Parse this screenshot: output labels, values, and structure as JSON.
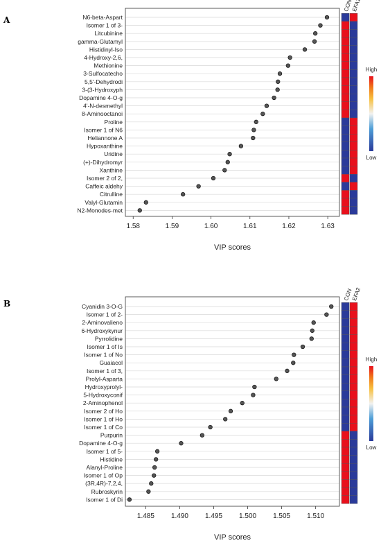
{
  "colors": {
    "high": "#e8101c",
    "low": "#2a3a9a",
    "point_fill": "#555555",
    "grid": "#d9d9d9"
  },
  "chart_data": [
    {
      "panel": "A",
      "type": "scatter",
      "xlabel": "VIP scores",
      "xlim": [
        1.578,
        1.633
      ],
      "xticks": [
        1.58,
        1.59,
        1.6,
        1.61,
        1.62,
        1.63
      ],
      "xtick_labels": [
        "1.58",
        "1.59",
        "1.60",
        "1.61",
        "1.62",
        "1.63"
      ],
      "categories": [
        "N6-beta-Aspart",
        "Isomer 1 of 3-",
        "Litcubinine",
        "gamma-Glutamyl",
        "Histidinyl-Iso",
        "4-Hydroxy-2,6,",
        "Methionine",
        "3-Sulfocatecho",
        "5,5'-Dehydrodi",
        "3-(3-Hydroxyph",
        "Dopamine 4-O-g",
        "4'-N-desmethyl",
        "8-Aminooctanoi",
        "Proline",
        "Isomer 1 of N6",
        "Heliannone A",
        "Hypoxanthine",
        "Uridine",
        "(+)-Dihydromyr",
        "Xanthine",
        "Isomer 2 of 2,",
        "Caffeic aldehy",
        "Citrulline",
        "Valyl-Glutamin",
        "N2-Monodes-met"
      ],
      "values": [
        1.6298,
        1.6281,
        1.6268,
        1.6266,
        1.6241,
        1.6203,
        1.6198,
        1.6177,
        1.6172,
        1.6171,
        1.6162,
        1.6143,
        1.6133,
        1.6116,
        1.611,
        1.6108,
        1.6077,
        1.6048,
        1.6043,
        1.6035,
        1.6006,
        1.5968,
        1.5928,
        1.5833,
        1.5817
      ],
      "heatmap_columns": [
        "CON",
        "EFA1"
      ],
      "heatmap": [
        [
          0,
          1
        ],
        [
          1,
          0
        ],
        [
          1,
          0
        ],
        [
          1,
          0
        ],
        [
          1,
          0
        ],
        [
          1,
          0
        ],
        [
          1,
          0
        ],
        [
          1,
          0
        ],
        [
          1,
          0
        ],
        [
          1,
          0
        ],
        [
          1,
          0
        ],
        [
          1,
          0
        ],
        [
          1,
          0
        ],
        [
          0,
          1
        ],
        [
          0,
          1
        ],
        [
          0,
          1
        ],
        [
          0,
          1
        ],
        [
          0,
          1
        ],
        [
          0,
          1
        ],
        [
          0,
          1
        ],
        [
          1,
          0
        ],
        [
          0,
          1
        ],
        [
          1,
          0
        ],
        [
          1,
          0
        ],
        [
          1,
          0
        ]
      ],
      "legend": {
        "high": "High",
        "low": "Low"
      }
    },
    {
      "panel": "B",
      "type": "scatter",
      "xlabel": "VIP scores",
      "xlim": [
        1.482,
        1.5135
      ],
      "xticks": [
        1.485,
        1.49,
        1.495,
        1.5,
        1.505,
        1.51
      ],
      "xtick_labels": [
        "1.485",
        "1.490",
        "1.495",
        "1.500",
        "1.505",
        "1.510"
      ],
      "categories": [
        "Cyanidin 3-O-G",
        "Isomer 1 of 2-",
        "2-Aminovalieno",
        "6-Hydroxykynur",
        "Pyrrolidine",
        "Isomer 1 of Is",
        "Isomer 1 of No",
        "Guaiacol",
        "Isomer 1 of 3,",
        "Prolyl-Asparta",
        "Hydroxyprolyl-",
        "5-Hydroxyconif",
        "2-Aminophenol",
        "Isomer 2 of Ho",
        "Isomer 1 of Ho",
        "Isomer 1 of Co",
        "Purpurin",
        "Dopamine 4-O-g",
        "Isomer 1 of 5-",
        "Histidine",
        "Alanyl-Proline",
        "Isomer 1 of Op",
        "(3R,4R)-7,2,4,",
        "Rubroskyrin",
        "Isomer 1 of Di"
      ],
      "values": [
        1.5123,
        1.5116,
        1.5097,
        1.5095,
        1.5094,
        1.5081,
        1.5068,
        1.5067,
        1.5058,
        1.5042,
        1.501,
        1.5008,
        1.4992,
        1.4975,
        1.4967,
        1.4945,
        1.4933,
        1.4902,
        1.4867,
        1.4865,
        1.4863,
        1.4862,
        1.4858,
        1.4854,
        1.4826
      ],
      "heatmap_columns": [
        "CON",
        "EFA2"
      ],
      "heatmap": [
        [
          0,
          1
        ],
        [
          0,
          1
        ],
        [
          0,
          1
        ],
        [
          0,
          1
        ],
        [
          0,
          1
        ],
        [
          0,
          1
        ],
        [
          0,
          1
        ],
        [
          0,
          1
        ],
        [
          0,
          1
        ],
        [
          0,
          1
        ],
        [
          0,
          1
        ],
        [
          0,
          1
        ],
        [
          0,
          1
        ],
        [
          0,
          1
        ],
        [
          0,
          1
        ],
        [
          0,
          1
        ],
        [
          1,
          0
        ],
        [
          1,
          0
        ],
        [
          1,
          0
        ],
        [
          1,
          0
        ],
        [
          1,
          0
        ],
        [
          1,
          0
        ],
        [
          1,
          0
        ],
        [
          1,
          0
        ],
        [
          1,
          0
        ]
      ],
      "legend": {
        "high": "High",
        "low": "Low"
      }
    }
  ]
}
